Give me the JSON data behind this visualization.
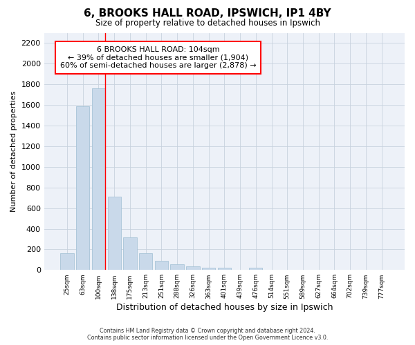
{
  "title_line1": "6, BROOKS HALL ROAD, IPSWICH, IP1 4BY",
  "title_line2": "Size of property relative to detached houses in Ipswich",
  "xlabel": "Distribution of detached houses by size in Ipswich",
  "ylabel": "Number of detached properties",
  "categories": [
    "25sqm",
    "63sqm",
    "100sqm",
    "138sqm",
    "175sqm",
    "213sqm",
    "251sqm",
    "288sqm",
    "326sqm",
    "363sqm",
    "401sqm",
    "439sqm",
    "476sqm",
    "514sqm",
    "551sqm",
    "589sqm",
    "627sqm",
    "664sqm",
    "702sqm",
    "739sqm",
    "777sqm"
  ],
  "values": [
    160,
    1590,
    1760,
    710,
    315,
    160,
    90,
    55,
    35,
    25,
    20,
    0,
    20,
    0,
    0,
    0,
    0,
    0,
    0,
    0,
    0
  ],
  "bar_color": "#c9d9ea",
  "bar_edge_color": "#a8c4d8",
  "grid_color": "#c8d2de",
  "bg_color": "#edf1f8",
  "annotation_text": "6 BROOKS HALL ROAD: 104sqm\n← 39% of detached houses are smaller (1,904)\n60% of semi-detached houses are larger (2,878) →",
  "red_line_bin": 2,
  "ylim_max": 2300,
  "yticks": [
    0,
    200,
    400,
    600,
    800,
    1000,
    1200,
    1400,
    1600,
    1800,
    2000,
    2200
  ],
  "footer_line1": "Contains HM Land Registry data © Crown copyright and database right 2024.",
  "footer_line2": "Contains public sector information licensed under the Open Government Licence v3.0."
}
